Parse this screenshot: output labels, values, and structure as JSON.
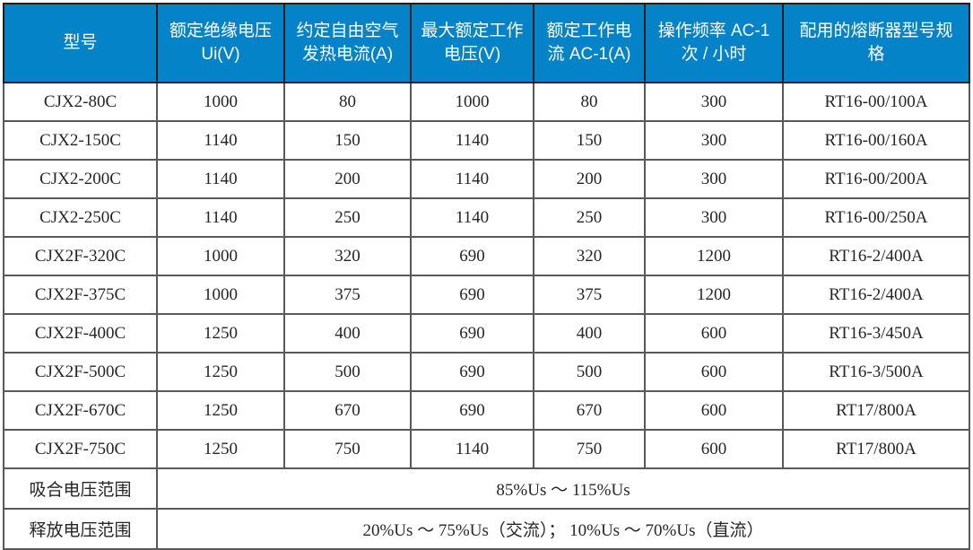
{
  "colors": {
    "header_bg": "#0483c8",
    "header_text": "#ffffff",
    "body_text": "#262626",
    "grid_border": "#595959",
    "outer_border": "#1f1f1f",
    "background": "#ffffff"
  },
  "table": {
    "headers": [
      "型号",
      "额定绝缘电压 Ui(V)",
      "约定自由空气发热电流(A)",
      "最大额定工作电压(V)",
      "额定工作电流 AC-1(A)",
      "操作频率 AC-1 次 / 小时",
      "配用的熔断器型号规格"
    ],
    "rows": [
      [
        "CJX2-80C",
        "1000",
        "80",
        "1000",
        "80",
        "300",
        "RT16-00/100A"
      ],
      [
        "CJX2-150C",
        "1140",
        "150",
        "1140",
        "150",
        "300",
        "RT16-00/160A"
      ],
      [
        "CJX2-200C",
        "1140",
        "200",
        "1140",
        "200",
        "300",
        "RT16-00/200A"
      ],
      [
        "CJX2-250C",
        "1140",
        "250",
        "1140",
        "250",
        "300",
        "RT16-00/250A"
      ],
      [
        "CJX2F-320C",
        "1000",
        "320",
        "690",
        "320",
        "1200",
        "RT16-2/400A"
      ],
      [
        "CJX2F-375C",
        "1000",
        "375",
        "690",
        "375",
        "1200",
        "RT16-2/400A"
      ],
      [
        "CJX2F-400C",
        "1250",
        "400",
        "690",
        "400",
        "600",
        "RT16-3/450A"
      ],
      [
        "CJX2F-500C",
        "1250",
        "500",
        "690",
        "500",
        "600",
        "RT16-3/500A"
      ],
      [
        "CJX2F-670C",
        "1250",
        "670",
        "690",
        "670",
        "600",
        "RT17/800A"
      ],
      [
        "CJX2F-750C",
        "1250",
        "750",
        "1140",
        "750",
        "600",
        "RT17/800A"
      ]
    ],
    "footer_rows": [
      {
        "label": "吸合电压范围",
        "value": "85%Us ～ 115%Us"
      },
      {
        "label": "释放电压范围",
        "value": "20%Us ～ 75%Us（交流）； 10%Us ～ 70%Us（直流）"
      }
    ]
  }
}
